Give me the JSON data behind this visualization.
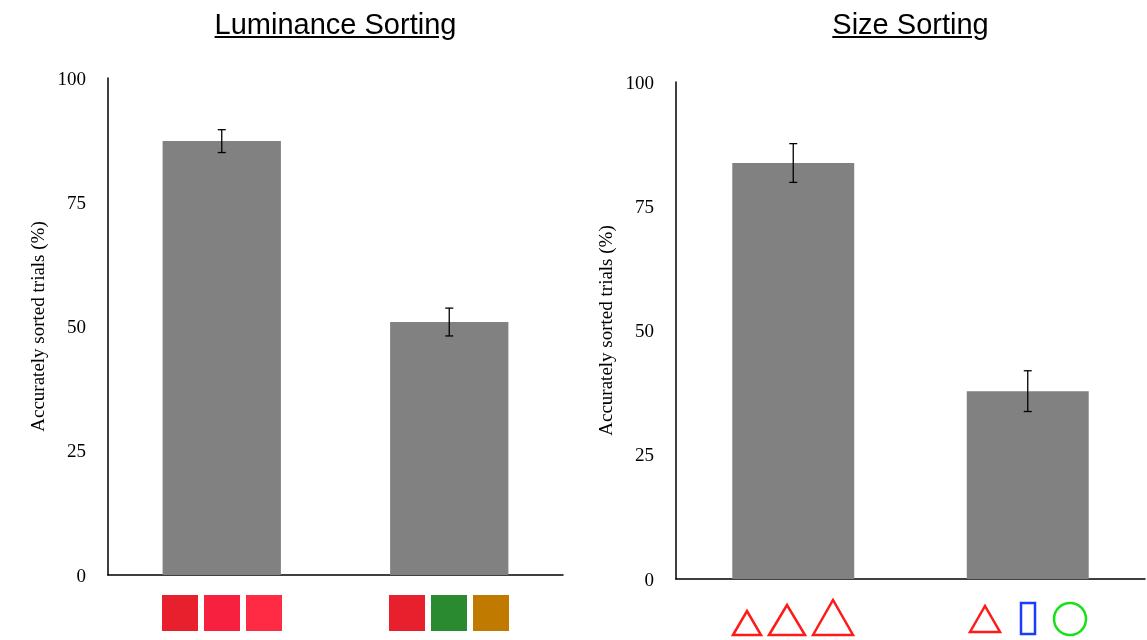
{
  "chart_data": [
    {
      "type": "bar",
      "title": "Luminance Sorting",
      "ylabel": "Accurately sorted trials (%)",
      "categories": [
        null,
        null
      ],
      "values": [
        87.3,
        50.9
      ],
      "errors": [
        2.3,
        2.8
      ],
      "color": "#808180",
      "ylim": [
        0,
        100
      ],
      "yticks": [
        0,
        25,
        50,
        75,
        100
      ]
    },
    {
      "type": "bar",
      "title": "Size Sorting",
      "ylabel": "Accurately sorted trials (%)",
      "categories": [
        null,
        null
      ],
      "values": [
        83.7,
        37.8
      ],
      "errors": [
        3.9,
        4.1
      ],
      "color": "#808180",
      "ylim": [
        0,
        100
      ],
      "yticks": [
        0,
        25,
        50,
        75,
        100
      ]
    }
  ]
}
